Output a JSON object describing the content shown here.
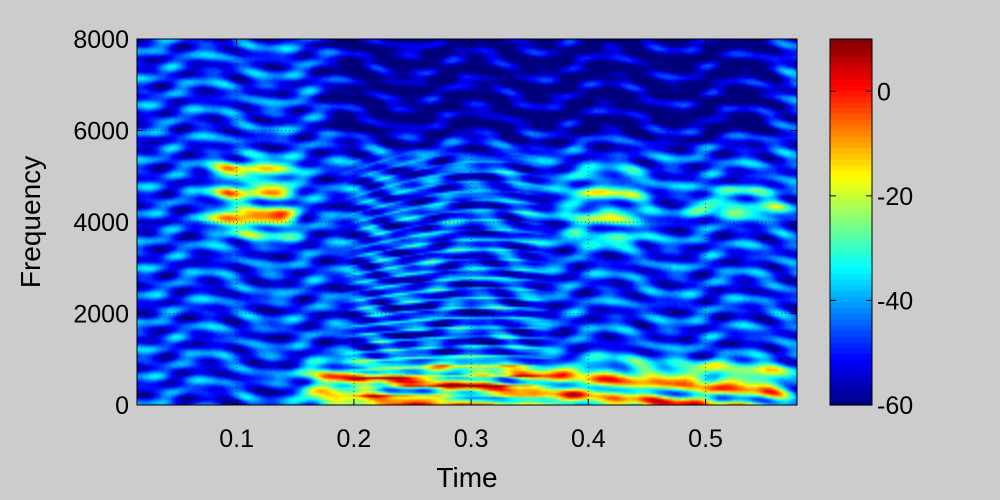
{
  "chart_data": {
    "type": "heatmap",
    "title": "",
    "xlabel": "Time",
    "ylabel": "Frequency",
    "xlim": [
      0.015,
      0.578
    ],
    "ylim": [
      0,
      8000
    ],
    "xticks": [
      0.1,
      0.2,
      0.3,
      0.4,
      0.5
    ],
    "yticks": [
      0,
      2000,
      4000,
      6000,
      8000
    ],
    "colorbar": {
      "range": [
        -60,
        10
      ],
      "ticks": [
        0,
        -20,
        -40,
        -60
      ],
      "colormap": "jet"
    },
    "grid": true,
    "features": {
      "background_level": -48,
      "high_frequency_quiet_region": {
        "t": [
          0.18,
          0.56
        ],
        "f": [
          5800,
          8000
        ],
        "level": -58
      },
      "upper_band_energy": [
        {
          "t": [
            0.08,
            0.15
          ],
          "f": [
            3700,
            5400
          ],
          "level": -14,
          "peak_f": 4000
        },
        {
          "t": [
            0.38,
            0.45
          ],
          "f": [
            3500,
            5100
          ],
          "level": -26
        },
        {
          "t": [
            0.49,
            0.57
          ],
          "f": [
            4100,
            4700
          ],
          "level": -22
        }
      ],
      "harmonic_voiced_segment": {
        "t": [
          0.2,
          0.36
        ],
        "f": [
          0,
          5500
        ],
        "fundamental_hz": 190
      },
      "low_frequency_energy": {
        "t": [
          0.16,
          0.57
        ],
        "f": [
          0,
          900
        ],
        "level": -5
      }
    }
  }
}
